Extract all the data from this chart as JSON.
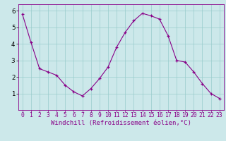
{
  "x": [
    0,
    1,
    2,
    3,
    4,
    5,
    6,
    7,
    8,
    9,
    10,
    11,
    12,
    13,
    14,
    15,
    16,
    17,
    18,
    19,
    20,
    21,
    22,
    23
  ],
  "y": [
    5.8,
    4.1,
    2.5,
    2.3,
    2.1,
    1.5,
    1.1,
    0.85,
    1.3,
    1.9,
    2.6,
    3.8,
    4.7,
    5.4,
    5.85,
    5.7,
    5.5,
    4.5,
    3.0,
    2.9,
    2.3,
    1.6,
    1.0,
    0.7
  ],
  "line_color": "#880088",
  "marker": "+",
  "marker_color": "#880088",
  "bg_color": "#cce8ea",
  "grid_color": "#99cccc",
  "xlabel": "Windchill (Refroidissement éolien,°C)",
  "xlabel_color": "#880088",
  "xtick_color": "#880088",
  "ytick_color": "#000000",
  "ylim": [
    0,
    6.4
  ],
  "yticks": [
    1,
    2,
    3,
    4,
    5,
    6
  ],
  "axis_color": "#880088",
  "xlabel_fontsize": 6.5,
  "tick_fontsize": 5.8,
  "figwidth": 3.2,
  "figheight": 2.0,
  "dpi": 100
}
